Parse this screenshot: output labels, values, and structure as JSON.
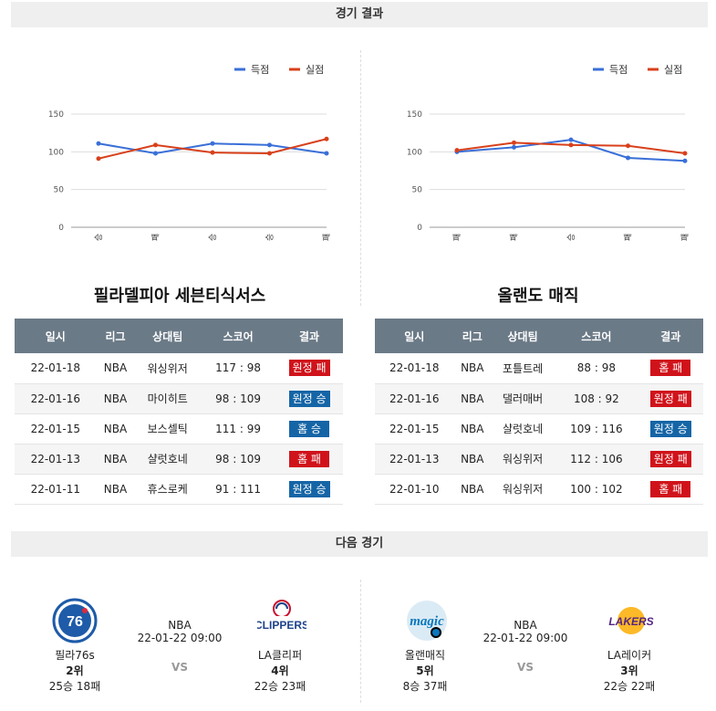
{
  "headers": {
    "results": "경기 결과",
    "next": "다음 경기"
  },
  "legend": {
    "scored": "득점",
    "conceded": "실점"
  },
  "colors": {
    "scored": "#3a6fd8",
    "conceded": "#d8401b",
    "badge_red": "#d0131b",
    "badge_blue": "#1565a6",
    "table_header": "#6b7a87"
  },
  "table_headers": [
    "일시",
    "리그",
    "상대팀",
    "스코어",
    "결과"
  ],
  "teams": [
    {
      "name": "필라델피아 세븐티식서스",
      "chart_data": {
        "type": "line",
        "categories": [
          "승",
          "패",
          "승",
          "승",
          "패"
        ],
        "series": [
          {
            "name": "득점",
            "values": [
              111,
              98,
              111,
              109,
              98
            ]
          },
          {
            "name": "실점",
            "values": [
              91,
              109,
              99,
              98,
              117
            ]
          }
        ],
        "yticks": [
          0,
          50,
          100,
          150
        ],
        "ylim": [
          0,
          150
        ]
      },
      "games": [
        {
          "date": "22-01-18",
          "league": "NBA",
          "opponent": "워싱위저",
          "score": "117 : 98",
          "result": "원정 패",
          "color": "red"
        },
        {
          "date": "22-01-16",
          "league": "NBA",
          "opponent": "마이히트",
          "score": "98 : 109",
          "result": "원정 승",
          "color": "blue"
        },
        {
          "date": "22-01-15",
          "league": "NBA",
          "opponent": "보스셀틱",
          "score": "111 : 99",
          "result": "홈 승",
          "color": "blue"
        },
        {
          "date": "22-01-13",
          "league": "NBA",
          "opponent": "샬럿호네",
          "score": "98 : 109",
          "result": "홈 패",
          "color": "red"
        },
        {
          "date": "22-01-11",
          "league": "NBA",
          "opponent": "휴스로케",
          "score": "91 : 111",
          "result": "원정 승",
          "color": "blue"
        }
      ]
    },
    {
      "name": "올랜도 매직",
      "chart_data": {
        "type": "line",
        "categories": [
          "패",
          "패",
          "승",
          "패",
          "패"
        ],
        "series": [
          {
            "name": "득점",
            "values": [
              100,
              106,
              116,
              92,
              88
            ]
          },
          {
            "name": "실점",
            "values": [
              102,
              112,
              109,
              108,
              98
            ]
          }
        ],
        "yticks": [
          0,
          50,
          100,
          150
        ],
        "ylim": [
          0,
          150
        ]
      },
      "games": [
        {
          "date": "22-01-18",
          "league": "NBA",
          "opponent": "포틀트레",
          "score": "88 : 98",
          "result": "홈 패",
          "color": "red"
        },
        {
          "date": "22-01-16",
          "league": "NBA",
          "opponent": "댈러매버",
          "score": "108 : 92",
          "result": "원정 패",
          "color": "red"
        },
        {
          "date": "22-01-15",
          "league": "NBA",
          "opponent": "샬럿호네",
          "score": "109 : 116",
          "result": "원정 승",
          "color": "blue"
        },
        {
          "date": "22-01-13",
          "league": "NBA",
          "opponent": "워싱위저",
          "score": "112 : 106",
          "result": "원정 패",
          "color": "red"
        },
        {
          "date": "22-01-10",
          "league": "NBA",
          "opponent": "워싱위저",
          "score": "100 : 102",
          "result": "홈 패",
          "color": "red"
        }
      ]
    }
  ],
  "next_games": [
    {
      "league": "NBA",
      "datetime": "22-01-22 09:00",
      "vs": "VS",
      "home": {
        "name": "필라76s",
        "rank": "2위",
        "record": "25승 18패",
        "logo": "76ers-logo"
      },
      "away": {
        "name": "LA클리퍼",
        "rank": "4위",
        "record": "22승 23패",
        "logo": "clippers-logo",
        "logo_text": "CLIPPERS"
      }
    },
    {
      "league": "NBA",
      "datetime": "22-01-22 09:00",
      "vs": "VS",
      "home": {
        "name": "올랜매직",
        "rank": "5위",
        "record": "8승 37패",
        "logo": "magic-logo",
        "logo_text": "magic"
      },
      "away": {
        "name": "LA레이커",
        "rank": "3위",
        "record": "22승 22패",
        "logo": "lakers-logo",
        "logo_text": "LAKERS"
      }
    }
  ]
}
